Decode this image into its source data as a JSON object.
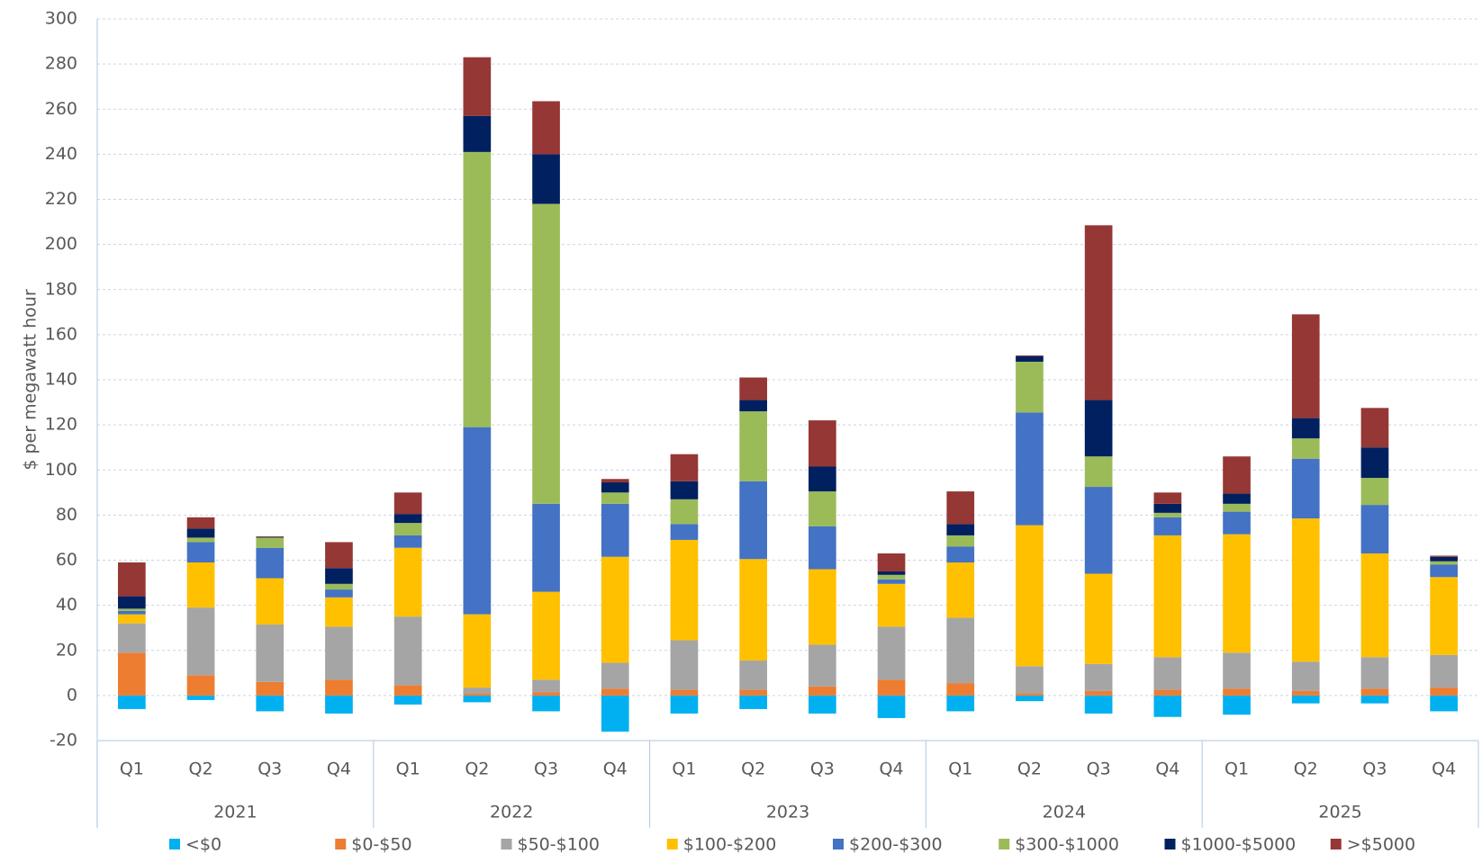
{
  "chart_data": {
    "type": "bar",
    "stacked": true,
    "y_label": "$ per megawatt hour",
    "categories": [
      "Q1",
      "Q2",
      "Q3",
      "Q4",
      "Q1",
      "Q2",
      "Q3",
      "Q4",
      "Q1",
      "Q2",
      "Q3",
      "Q4",
      "Q1",
      "Q2",
      "Q3",
      "Q4",
      "Q1",
      "Q2",
      "Q3",
      "Q4"
    ],
    "groups": [
      "2021",
      "2022",
      "2023",
      "2024",
      "2025"
    ],
    "ylim": [
      -20,
      300
    ],
    "yticks": [
      -20,
      0,
      20,
      40,
      60,
      80,
      100,
      120,
      140,
      160,
      180,
      200,
      220,
      240,
      260,
      280,
      300
    ],
    "grid": true,
    "legend": "bottom",
    "series": [
      {
        "name": "<$0",
        "color": "#00b0f0",
        "values": [
          -6,
          -2,
          -7,
          -8,
          -4,
          -3,
          -7,
          -16,
          -8,
          -6,
          -8,
          -10,
          -7,
          -2.5,
          -8,
          -9.5,
          -8.5,
          -3.5,
          -3.5,
          -7
        ]
      },
      {
        "name": "$0-$50",
        "color": "#ed7d31",
        "values": [
          19,
          9,
          6,
          7,
          4.5,
          1,
          1.5,
          3,
          2.5,
          2.5,
          4,
          7,
          5.5,
          1,
          2,
          2.5,
          3,
          2,
          3,
          3.5
        ]
      },
      {
        "name": "$50-$100",
        "color": "#a5a5a5",
        "values": [
          13,
          30,
          25.5,
          23.5,
          30.5,
          2.5,
          5.5,
          11.5,
          22,
          13,
          18.5,
          23.5,
          29,
          12,
          12,
          14.5,
          16,
          13,
          14,
          14.5
        ]
      },
      {
        "name": "$100-$200",
        "color": "#ffc000",
        "values": [
          4,
          20,
          20.5,
          13,
          30.5,
          32.5,
          39,
          47,
          44.5,
          45,
          33.5,
          19,
          24.5,
          62.5,
          40,
          54,
          52.5,
          63.5,
          46,
          34.5
        ]
      },
      {
        "name": "$200-$300",
        "color": "#4472c4",
        "values": [
          1.5,
          9,
          13.5,
          3.5,
          5.5,
          83,
          39,
          23.5,
          7,
          34.5,
          19,
          2,
          7,
          50,
          38.5,
          8,
          10,
          26.5,
          21.5,
          5.5
        ]
      },
      {
        "name": "$300-$1000",
        "color": "#9bbb59",
        "values": [
          1,
          2,
          4.5,
          2.5,
          5.5,
          122,
          133,
          5,
          11,
          31,
          15.5,
          2,
          5,
          22.5,
          13.5,
          2,
          3.5,
          9,
          12,
          1.5
        ]
      },
      {
        "name": "$1000-$5000",
        "color": "#002060",
        "values": [
          5.5,
          4,
          0.3,
          7,
          4,
          16,
          22,
          4.5,
          8,
          5,
          11,
          1.5,
          5,
          2.5,
          25,
          4,
          4.5,
          9,
          13.5,
          2
        ]
      },
      {
        "name": ">$5000",
        "color": "#953735",
        "values": [
          15,
          5,
          0.3,
          11.5,
          9.5,
          26,
          23.5,
          1.5,
          12,
          10,
          20.5,
          8,
          14.5,
          0.3,
          77.5,
          5,
          16.5,
          46,
          17.5,
          0.5
        ]
      }
    ]
  }
}
